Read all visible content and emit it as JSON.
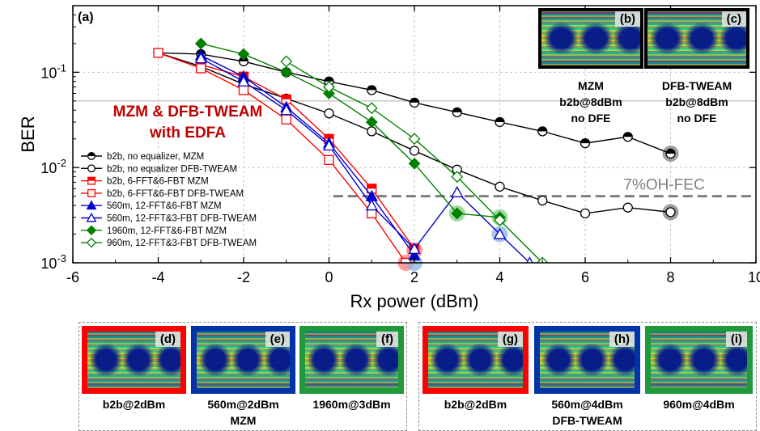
{
  "chart_data": {
    "type": "line",
    "panel_label": "(a)",
    "xlabel": "Rx power (dBm)",
    "ylabel": "BER",
    "xlim": [
      -6,
      10
    ],
    "ylim": [
      0.001,
      0.5
    ],
    "yscale": "log",
    "x_ticks": [
      -6,
      -4,
      -2,
      0,
      2,
      4,
      6,
      8,
      10
    ],
    "y_ticks": [
      {
        "value": 0.001,
        "base": "10",
        "exp": "-3"
      },
      {
        "value": 0.01,
        "base": "10",
        "exp": "-2"
      },
      {
        "value": 0.1,
        "base": "10",
        "exp": "-1"
      }
    ],
    "grid": true,
    "legend_position": "bottom-left",
    "annotation_title_line1": "MZM & DFB-TWEAM",
    "annotation_title_line2": "with EDFA",
    "fec_label": "7%OH-FEC",
    "fec_threshold": 0.005,
    "reference_line": 0.05,
    "series": [
      {
        "name": "b2b, no equalizer, MZM",
        "color": "#000000",
        "marker": "circle-half",
        "x": [
          -4,
          -3,
          -2,
          -1,
          0,
          1,
          2,
          3,
          4,
          5,
          6,
          7,
          8
        ],
        "y": [
          0.16,
          0.155,
          0.13,
          0.1,
          0.08,
          0.065,
          0.048,
          0.038,
          0.03,
          0.024,
          0.018,
          0.021,
          0.014
        ]
      },
      {
        "name": "b2b, no equalizer DFB-TWEAM",
        "color": "#000000",
        "marker": "circle-open",
        "x": [
          -4,
          -3,
          -2,
          -1,
          0,
          1,
          2,
          3,
          4,
          5,
          6,
          7,
          8
        ],
        "y": [
          0.16,
          0.115,
          0.075,
          0.053,
          0.037,
          0.024,
          0.015,
          0.0095,
          0.0063,
          0.0045,
          0.0033,
          0.0038,
          0.0034
        ]
      },
      {
        "name": "b2b, 6-FFT&6-FBT MZM",
        "color": "#ff0000",
        "marker": "square-half",
        "x": [
          -3,
          -2,
          -1,
          0,
          1,
          2
        ],
        "y": [
          0.12,
          0.09,
          0.052,
          0.02,
          0.006,
          0.0014
        ]
      },
      {
        "name": "b2b, 6-FFT&6-FBT DFB-TWEAM",
        "color": "#ff0000",
        "marker": "square-open",
        "x": [
          -4,
          -3,
          -2,
          -1,
          0,
          1,
          1.8
        ],
        "y": [
          0.16,
          0.11,
          0.065,
          0.032,
          0.012,
          0.0033,
          0.001
        ]
      },
      {
        "name": "560m, 12-FFT&6-FBT MZM",
        "color": "#0000cc",
        "marker": "triangle-filled",
        "x": [
          -3,
          -2,
          -1,
          0,
          1,
          2
        ],
        "y": [
          0.15,
          0.09,
          0.043,
          0.018,
          0.005,
          0.0012
        ]
      },
      {
        "name": "560m, 12-FFT&3-FBT DFB-TWEAM",
        "color": "#0000cc",
        "marker": "triangle-open",
        "x": [
          -3,
          -2,
          -1,
          0,
          1,
          2,
          3,
          4,
          4.7
        ],
        "y": [
          0.14,
          0.08,
          0.04,
          0.017,
          0.004,
          0.0014,
          0.0055,
          0.002,
          0.001
        ]
      },
      {
        "name": "1960m, 12-FFT&6-FBT MZM",
        "color": "#008000",
        "marker": "diamond-filled",
        "x": [
          -3,
          -2,
          -1,
          0,
          1,
          2,
          3,
          4
        ],
        "y": [
          0.2,
          0.155,
          0.1,
          0.06,
          0.03,
          0.011,
          0.0033,
          0.003
        ]
      },
      {
        "name": "960m, 12-FFT&3-FBT DFB-TWEAM",
        "color": "#008000",
        "marker": "diamond-open",
        "x": [
          -1,
          0,
          1,
          2,
          3,
          4,
          5
        ],
        "y": [
          0.13,
          0.07,
          0.042,
          0.02,
          0.008,
          0.0028,
          0.001
        ]
      }
    ],
    "highlights": [
      {
        "x": 1.8,
        "y": 0.001,
        "color": "#ff7a7a"
      },
      {
        "x": 2,
        "y": 0.00135,
        "color": "#ff7a7a"
      },
      {
        "x": 2,
        "y": 0.001,
        "color": "#8fb3e0"
      },
      {
        "x": 3,
        "y": 0.0033,
        "color": "#7fcf7f"
      },
      {
        "x": 4,
        "y": 0.003,
        "color": "#7fcf7f"
      },
      {
        "x": 4,
        "y": 0.002,
        "color": "#8fb3e0"
      },
      {
        "x": 8,
        "y": 0.014,
        "color": "#808080"
      },
      {
        "x": 8,
        "y": 0.0034,
        "color": "#808080"
      }
    ]
  },
  "insets_top": [
    {
      "label": "(b)",
      "caption": [
        "MZM",
        "b2b@8dBm",
        "no DFE"
      ]
    },
    {
      "label": "(c)",
      "caption": [
        "DFB-TWEAM",
        "b2b@8dBm",
        "no DFE"
      ]
    }
  ],
  "group_mzm": {
    "label": "MZM",
    "tiles": [
      {
        "label": "(d)",
        "caption": "b2b@2dBm",
        "border_color": "#ff0000"
      },
      {
        "label": "(e)",
        "caption": "560m@2dBm",
        "border_color": "#0033aa"
      },
      {
        "label": "(f)",
        "caption": "1960m@3dBm",
        "border_color": "#1f9a3a"
      }
    ]
  },
  "group_dfb": {
    "label": "DFB-TWEAM",
    "tiles": [
      {
        "label": "(g)",
        "caption": "b2b@2dBm",
        "border_color": "#ff0000"
      },
      {
        "label": "(h)",
        "caption": "560m@4dBm",
        "border_color": "#0033aa"
      },
      {
        "label": "(i)",
        "caption": "960m@4dBm",
        "border_color": "#1f9a3a"
      }
    ]
  }
}
